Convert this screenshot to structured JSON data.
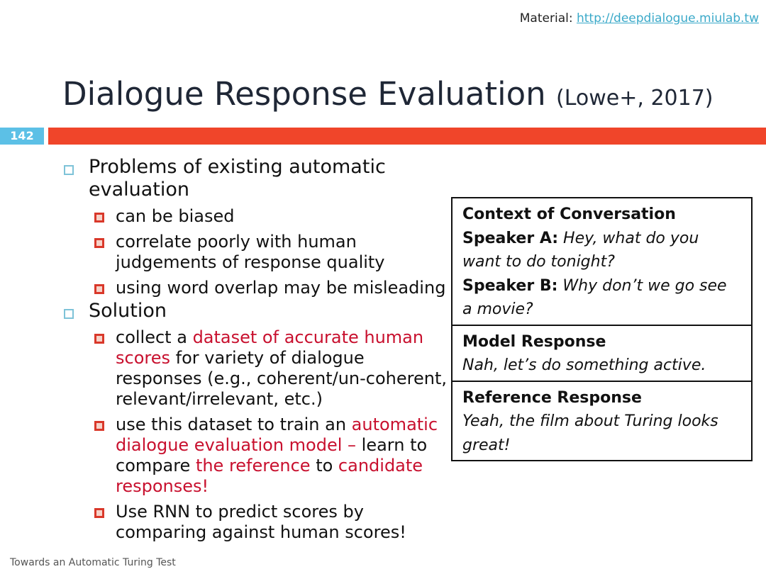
{
  "header": {
    "material_label": "Material: ",
    "material_link": "http://deepdialogue.miulab.tw"
  },
  "title": {
    "main": "Dialogue Response Evaluation ",
    "cite": "(Lowe+, 2017)"
  },
  "slide_number": "142",
  "colors": {
    "accent_bar": "#f0452a",
    "slide_number_bg": "#5cc0e6",
    "highlight_text": "#c8102e"
  },
  "bullets": [
    {
      "text": "Problems of existing automatic evaluation",
      "sub": [
        [
          {
            "t": "can be biased"
          }
        ],
        [
          {
            "t": "correlate poorly with human judgements of response quality"
          }
        ],
        [
          {
            "t": "using word overlap may be misleading"
          }
        ]
      ]
    },
    {
      "text": "Solution",
      "sub": [
        [
          {
            "t": "collect a "
          },
          {
            "t": "dataset of accurate human scores",
            "red": true
          },
          {
            "t": " for variety of dialogue responses (e.g., coherent/un-coherent, relevant/irrelevant, etc.)"
          }
        ],
        [
          {
            "t": "use this dataset to train an "
          },
          {
            "t": "automatic dialogue evaluation model –",
            "red": true
          },
          {
            "t": " learn to compare "
          },
          {
            "t": "the reference",
            "red": true
          },
          {
            "t": " to "
          },
          {
            "t": "candidate responses!",
            "red": true
          }
        ],
        [
          {
            "t": "Use RNN to predict scores by comparing against human scores!"
          }
        ]
      ]
    }
  ],
  "example_box": {
    "context_heading": "Context of Conversation",
    "speaker_a_label": "Speaker A:",
    "speaker_a_text": " Hey, what do you want to do tonight?",
    "speaker_b_label": "Speaker B:",
    "speaker_b_text": " Why don’t we go see a movie?",
    "model_heading": "Model Response",
    "model_text": "Nah, let’s do something active.",
    "reference_heading": "Reference Response",
    "reference_text": "Yeah, the film about Turing looks great!"
  },
  "footer": "Towards an Automatic Turing Test"
}
